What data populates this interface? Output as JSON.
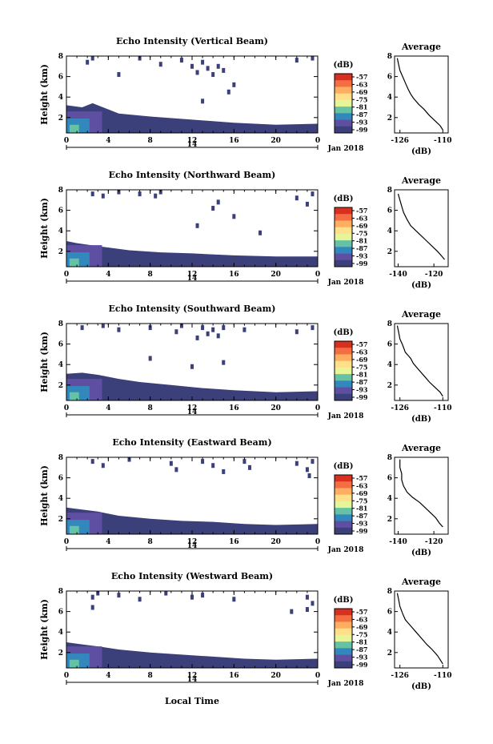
{
  "figure": {
    "xlabel": "Local Time",
    "date_label": "Jan 2018",
    "colorbar_unit": "(dB)",
    "colorbar_ticks": [
      "-57",
      "-63",
      "-69",
      "-75",
      "-81",
      "-87",
      "-93",
      "-99"
    ],
    "colorbar_colors": [
      "#d7301f",
      "#f46d43",
      "#fdae61",
      "#fee08b",
      "#e6f598",
      "#66c2a5",
      "#3288bd",
      "#5e4fa2",
      "#3b3f7a"
    ],
    "echo_color": "#3b3f7a",
    "profile_title": "Average",
    "profile_xlabel": "(dB)"
  },
  "chart_data": [
    {
      "type": "heatmap",
      "title": "Echo Intensity (Vertical Beam)",
      "ylabel": "Height (km)",
      "xticks": [
        "0",
        "4",
        "8",
        "12",
        "16",
        "20",
        "0"
      ],
      "secondary_xtick": "14",
      "yticks": [
        "2",
        "4",
        "6",
        "8"
      ],
      "xlim": [
        0,
        24
      ],
      "ylim": [
        0.5,
        8
      ],
      "boundary": [
        [
          0,
          3.2
        ],
        [
          1.5,
          3.0
        ],
        [
          2.5,
          3.4
        ],
        [
          3.5,
          3.0
        ],
        [
          5,
          2.4
        ],
        [
          8,
          2.1
        ],
        [
          12,
          1.8
        ],
        [
          16,
          1.5
        ],
        [
          20,
          1.3
        ],
        [
          24,
          1.4
        ]
      ],
      "upper_cells": [
        [
          2,
          7.4
        ],
        [
          2.5,
          7.8
        ],
        [
          7,
          7.8
        ],
        [
          9,
          7.2
        ],
        [
          11,
          7.6
        ],
        [
          12,
          7.0
        ],
        [
          12.5,
          6.4
        ],
        [
          13,
          7.4
        ],
        [
          13.5,
          6.8
        ],
        [
          14,
          6.2
        ],
        [
          14.5,
          7.0
        ],
        [
          15,
          6.6
        ],
        [
          16,
          5.2
        ],
        [
          22,
          7.6
        ],
        [
          23.5,
          7.8
        ],
        [
          5,
          6.2
        ],
        [
          13,
          3.6
        ],
        [
          15.5,
          4.5
        ]
      ],
      "profile": {
        "xticks": [
          "-126",
          "-110"
        ],
        "xlim": [
          -128,
          -108
        ],
        "yticks": [
          "2",
          "4",
          "6",
          "8"
        ],
        "ylim": [
          0.5,
          8
        ],
        "points": [
          [
            -127,
            7.8
          ],
          [
            -126.5,
            7.2
          ],
          [
            -126,
            6.6
          ],
          [
            -125,
            6.0
          ],
          [
            -124,
            5.4
          ],
          [
            -123,
            4.8
          ],
          [
            -122,
            4.3
          ],
          [
            -121,
            3.9
          ],
          [
            -119,
            3.3
          ],
          [
            -117,
            2.8
          ],
          [
            -115,
            2.2
          ],
          [
            -113,
            1.7
          ],
          [
            -111,
            1.2
          ],
          [
            -110,
            0.8
          ]
        ]
      }
    },
    {
      "type": "heatmap",
      "title": "Echo Intensity (Northward Beam)",
      "ylabel": "Height (km)",
      "xticks": [
        "0",
        "4",
        "8",
        "12",
        "16",
        "20",
        "0"
      ],
      "secondary_xtick": "14",
      "yticks": [
        "2",
        "4",
        "6",
        "8"
      ],
      "xlim": [
        0,
        24
      ],
      "ylim": [
        0.5,
        8
      ],
      "boundary": [
        [
          0,
          3.0
        ],
        [
          1,
          2.8
        ],
        [
          3,
          2.5
        ],
        [
          6,
          2.1
        ],
        [
          9,
          1.9
        ],
        [
          12,
          1.8
        ],
        [
          16,
          1.6
        ],
        [
          20,
          1.5
        ],
        [
          24,
          1.5
        ]
      ],
      "upper_cells": [
        [
          2.5,
          7.6
        ],
        [
          3.5,
          7.4
        ],
        [
          5,
          7.8
        ],
        [
          7,
          7.6
        ],
        [
          8.5,
          7.4
        ],
        [
          9,
          7.8
        ],
        [
          14,
          6.2
        ],
        [
          14.5,
          6.8
        ],
        [
          12.5,
          4.5
        ],
        [
          18.5,
          3.8
        ],
        [
          22,
          7.2
        ],
        [
          23.5,
          7.6
        ],
        [
          23,
          6.6
        ],
        [
          16,
          5.4
        ]
      ],
      "profile": {
        "xticks": [
          "-140",
          "-120"
        ],
        "xlim": [
          -142,
          -112
        ],
        "yticks": [
          "2",
          "4",
          "6",
          "8"
        ],
        "ylim": [
          0.5,
          8
        ],
        "points": [
          [
            -140,
            7.6
          ],
          [
            -139,
            7.0
          ],
          [
            -138,
            6.4
          ],
          [
            -137,
            5.8
          ],
          [
            -135,
            5.1
          ],
          [
            -133,
            4.5
          ],
          [
            -130,
            4.0
          ],
          [
            -127,
            3.5
          ],
          [
            -124,
            3.0
          ],
          [
            -121,
            2.5
          ],
          [
            -118,
            2.0
          ],
          [
            -116,
            1.6
          ],
          [
            -114,
            1.2
          ]
        ]
      }
    },
    {
      "type": "heatmap",
      "title": "Echo Intensity (Southward Beam)",
      "ylabel": "Height (km)",
      "xticks": [
        "0",
        "4",
        "8",
        "12",
        "16",
        "20",
        "0"
      ],
      "secondary_xtick": "14",
      "yticks": [
        "2",
        "4",
        "6",
        "8"
      ],
      "xlim": [
        0,
        24
      ],
      "ylim": [
        0.5,
        8
      ],
      "boundary": [
        [
          0,
          3.1
        ],
        [
          1.5,
          3.2
        ],
        [
          3,
          3.0
        ],
        [
          5,
          2.6
        ],
        [
          7,
          2.3
        ],
        [
          10,
          2.0
        ],
        [
          13,
          1.7
        ],
        [
          16,
          1.5
        ],
        [
          20,
          1.3
        ],
        [
          24,
          1.4
        ]
      ],
      "upper_cells": [
        [
          1.5,
          7.6
        ],
        [
          3.5,
          7.8
        ],
        [
          5,
          7.4
        ],
        [
          8,
          7.6
        ],
        [
          10.5,
          7.2
        ],
        [
          11,
          7.8
        ],
        [
          13,
          7.6
        ],
        [
          13.5,
          7.0
        ],
        [
          14,
          7.4
        ],
        [
          14.5,
          6.8
        ],
        [
          15,
          7.6
        ],
        [
          12.5,
          6.6
        ],
        [
          17,
          7.4
        ],
        [
          22,
          7.2
        ],
        [
          23.5,
          7.6
        ],
        [
          8,
          4.6
        ],
        [
          12,
          3.8
        ],
        [
          15,
          4.2
        ]
      ],
      "profile": {
        "xticks": [
          "-126",
          "-110"
        ],
        "xlim": [
          -128,
          -108
        ],
        "yticks": [
          "2",
          "4",
          "6",
          "8"
        ],
        "ylim": [
          0.5,
          8
        ],
        "points": [
          [
            -127,
            7.8
          ],
          [
            -126.5,
            7.2
          ],
          [
            -126,
            6.5
          ],
          [
            -125,
            5.9
          ],
          [
            -124,
            5.2
          ],
          [
            -122,
            4.6
          ],
          [
            -121,
            4.1
          ],
          [
            -119,
            3.5
          ],
          [
            -117,
            2.9
          ],
          [
            -115,
            2.3
          ],
          [
            -113,
            1.8
          ],
          [
            -111,
            1.3
          ],
          [
            -110,
            0.9
          ]
        ]
      }
    },
    {
      "type": "heatmap",
      "title": "Echo Intensity (Eastward Beam)",
      "ylabel": "Height (km)",
      "xticks": [
        "0",
        "4",
        "8",
        "12",
        "16",
        "20",
        "0"
      ],
      "secondary_xtick": "14",
      "yticks": [
        "2",
        "4",
        "6",
        "8"
      ],
      "xlim": [
        0,
        24
      ],
      "ylim": [
        0.5,
        8
      ],
      "boundary": [
        [
          0,
          3.1
        ],
        [
          1.5,
          2.9
        ],
        [
          3,
          2.7
        ],
        [
          5,
          2.3
        ],
        [
          8,
          2.0
        ],
        [
          11,
          1.8
        ],
        [
          14,
          1.7
        ],
        [
          17,
          1.5
        ],
        [
          20,
          1.4
        ],
        [
          24,
          1.5
        ]
      ],
      "upper_cells": [
        [
          2.5,
          7.6
        ],
        [
          3.5,
          7.2
        ],
        [
          6,
          7.8
        ],
        [
          10,
          7.4
        ],
        [
          10.5,
          6.8
        ],
        [
          13,
          7.6
        ],
        [
          14,
          7.2
        ],
        [
          15,
          6.6
        ],
        [
          17,
          7.6
        ],
        [
          17.5,
          7.0
        ],
        [
          22,
          7.4
        ],
        [
          23,
          6.8
        ],
        [
          23.5,
          7.6
        ],
        [
          23.2,
          6.2
        ]
      ],
      "profile": {
        "xticks": [
          "-140",
          "-120"
        ],
        "xlim": [
          -142,
          -112
        ],
        "yticks": [
          "2",
          "4",
          "6",
          "8"
        ],
        "ylim": [
          0.5,
          8
        ],
        "points": [
          [
            -139,
            7.8
          ],
          [
            -139,
            7.0
          ],
          [
            -138,
            6.4
          ],
          [
            -138,
            5.8
          ],
          [
            -137,
            5.2
          ],
          [
            -135,
            4.6
          ],
          [
            -132,
            4.1
          ],
          [
            -128,
            3.6
          ],
          [
            -125,
            3.1
          ],
          [
            -122,
            2.6
          ],
          [
            -119,
            2.1
          ],
          [
            -117,
            1.6
          ],
          [
            -115,
            1.2
          ]
        ]
      }
    },
    {
      "type": "heatmap",
      "title": "Echo Intensity (Westward Beam)",
      "ylabel": "Height (km)",
      "xticks": [
        "0",
        "4",
        "8",
        "12",
        "16",
        "20",
        "0"
      ],
      "secondary_xtick": "14",
      "yticks": [
        "2",
        "4",
        "6",
        "8"
      ],
      "xlim": [
        0,
        24
      ],
      "ylim": [
        0.5,
        8
      ],
      "boundary": [
        [
          0,
          3.0
        ],
        [
          1.5,
          2.8
        ],
        [
          3,
          2.6
        ],
        [
          5,
          2.3
        ],
        [
          8,
          2.0
        ],
        [
          11,
          1.8
        ],
        [
          14,
          1.6
        ],
        [
          17,
          1.4
        ],
        [
          20,
          1.3
        ],
        [
          24,
          1.4
        ]
      ],
      "upper_cells": [
        [
          2.5,
          7.4
        ],
        [
          3,
          7.8
        ],
        [
          5,
          7.6
        ],
        [
          7,
          7.2
        ],
        [
          9.5,
          7.8
        ],
        [
          12,
          7.4
        ],
        [
          2.5,
          6.4
        ],
        [
          13,
          7.6
        ],
        [
          16,
          7.2
        ],
        [
          21.5,
          6.0
        ],
        [
          23,
          7.4
        ],
        [
          23.5,
          6.8
        ],
        [
          23,
          6.2
        ]
      ],
      "profile": {
        "xticks": [
          "-126",
          "-110"
        ],
        "xlim": [
          -128,
          -108
        ],
        "yticks": [
          "2",
          "4",
          "6",
          "8"
        ],
        "ylim": [
          0.5,
          8
        ],
        "points": [
          [
            -127,
            7.8
          ],
          [
            -126.5,
            7.2
          ],
          [
            -126,
            6.5
          ],
          [
            -125,
            5.8
          ],
          [
            -124,
            5.2
          ],
          [
            -122,
            4.6
          ],
          [
            -120,
            4.0
          ],
          [
            -118,
            3.4
          ],
          [
            -116,
            2.8
          ],
          [
            -114,
            2.3
          ],
          [
            -112,
            1.7
          ],
          [
            -111,
            1.3
          ],
          [
            -110,
            0.9
          ]
        ]
      }
    }
  ]
}
